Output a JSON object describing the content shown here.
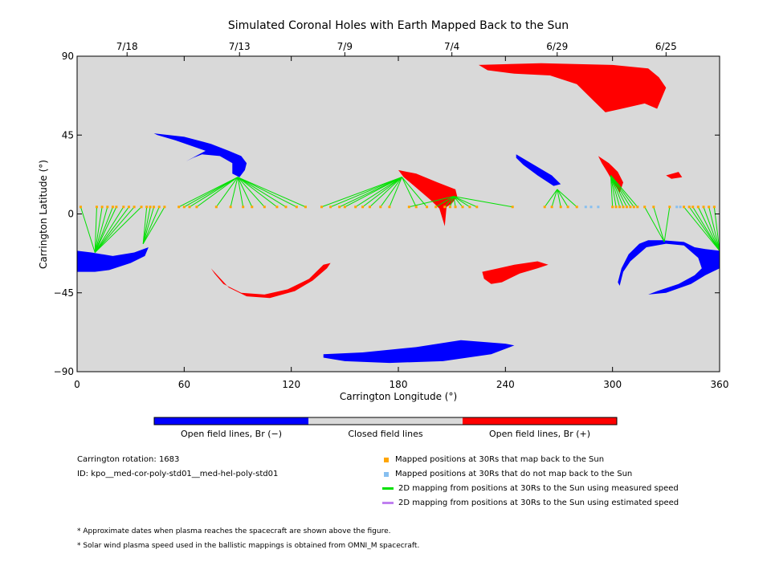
{
  "chart_data": {
    "type": "scatter",
    "title": "Simulated Coronal Holes with Earth Mapped Back to the Sun",
    "xlabel": "Carrington Longitude (°)",
    "ylabel": "Carrington Latitude (°)",
    "xlim": [
      0,
      360
    ],
    "ylim": [
      -90,
      90
    ],
    "xticks": [
      0,
      60,
      120,
      180,
      240,
      300,
      360
    ],
    "yticks": [
      -90,
      -45,
      0,
      45,
      90
    ],
    "ytick_labels": [
      "−90",
      "−45",
      "0",
      "45",
      "90"
    ],
    "top_axis_dates": [
      {
        "lon": 28,
        "label": "7/18"
      },
      {
        "lon": 91,
        "label": "7/13"
      },
      {
        "lon": 150,
        "label": "7/9"
      },
      {
        "lon": 210,
        "label": "7/4"
      },
      {
        "lon": 269,
        "label": "6/29"
      },
      {
        "lon": 330,
        "label": "6/25"
      }
    ],
    "colors": {
      "background": "#d9d9d9",
      "open_negative": "#0000ff",
      "open_positive": "#ff0000",
      "closed": "#d9d9d9",
      "mapped_back": "#ffa500",
      "not_mapped": "#87bff0",
      "measured_speed": "#00e000",
      "estimated_speed": "#c080f0"
    },
    "coronal_holes": [
      {
        "polarity": "positive",
        "outline": [
          [
            225,
            85
          ],
          [
            260,
            86
          ],
          [
            300,
            85
          ],
          [
            320,
            83
          ],
          [
            326,
            78
          ],
          [
            330,
            72
          ],
          [
            325,
            60
          ],
          [
            318,
            63
          ],
          [
            305,
            60
          ],
          [
            296,
            58
          ],
          [
            289,
            65
          ],
          [
            280,
            74
          ],
          [
            265,
            79
          ],
          [
            245,
            80
          ],
          [
            230,
            82
          ]
        ]
      },
      {
        "polarity": "negative",
        "outline": [
          [
            43,
            46
          ],
          [
            60,
            44
          ],
          [
            75,
            40
          ],
          [
            85,
            36
          ],
          [
            92,
            33
          ],
          [
            95,
            29
          ],
          [
            94,
            25
          ],
          [
            91,
            21
          ],
          [
            87,
            23
          ],
          [
            87,
            29
          ],
          [
            80,
            33
          ],
          [
            70,
            34
          ],
          [
            65,
            32
          ],
          [
            61,
            30
          ],
          [
            72,
            36
          ],
          [
            55,
            42
          ],
          [
            45,
            45
          ]
        ]
      },
      {
        "polarity": "positive",
        "outline": [
          [
            180,
            25
          ],
          [
            190,
            23
          ],
          [
            202,
            18
          ],
          [
            212,
            14
          ],
          [
            213,
            10
          ],
          [
            210,
            6
          ],
          [
            207,
            4
          ],
          [
            206,
            -7
          ],
          [
            203,
            3
          ],
          [
            198,
            8
          ],
          [
            190,
            15
          ],
          [
            183,
            21
          ]
        ]
      },
      {
        "polarity": "negative",
        "outline": [
          [
            246,
            34
          ],
          [
            256,
            28
          ],
          [
            266,
            22
          ],
          [
            271,
            17
          ],
          [
            267,
            16
          ],
          [
            258,
            22
          ],
          [
            250,
            28
          ],
          [
            246,
            32
          ]
        ]
      },
      {
        "polarity": "positive",
        "outline": [
          [
            292,
            33
          ],
          [
            298,
            29
          ],
          [
            303,
            24
          ],
          [
            306,
            18
          ],
          [
            304,
            12
          ],
          [
            301,
            17
          ],
          [
            297,
            24
          ],
          [
            294,
            29
          ]
        ]
      },
      {
        "polarity": "positive",
        "outline": [
          [
            330,
            22
          ],
          [
            337,
            24
          ],
          [
            339,
            21
          ],
          [
            333,
            20
          ]
        ]
      },
      {
        "polarity": "negative",
        "outline": [
          [
            0,
            -21
          ],
          [
            8,
            -22
          ],
          [
            20,
            -24
          ],
          [
            32,
            -22
          ],
          [
            40,
            -19
          ],
          [
            38,
            -24
          ],
          [
            30,
            -28
          ],
          [
            18,
            -32
          ],
          [
            10,
            -33
          ],
          [
            0,
            -33
          ]
        ]
      },
      {
        "polarity": "negative",
        "outline": [
          [
            315,
            -17
          ],
          [
            320,
            -15
          ],
          [
            328,
            -15
          ],
          [
            340,
            -16
          ],
          [
            346,
            -19
          ],
          [
            352,
            -20
          ],
          [
            360,
            -21
          ],
          [
            360,
            -31
          ],
          [
            352,
            -35
          ],
          [
            344,
            -40
          ],
          [
            330,
            -45
          ],
          [
            320,
            -46
          ],
          [
            325,
            -44
          ],
          [
            337,
            -40
          ],
          [
            346,
            -35
          ],
          [
            350,
            -31
          ],
          [
            348,
            -25
          ],
          [
            340,
            -18
          ],
          [
            330,
            -17
          ],
          [
            319,
            -19
          ],
          [
            310,
            -27
          ],
          [
            306,
            -33
          ],
          [
            305,
            -37
          ],
          [
            304,
            -41
          ],
          [
            303,
            -39
          ],
          [
            305,
            -31
          ],
          [
            309,
            -23
          ]
        ]
      },
      {
        "polarity": "positive",
        "outline": [
          [
            75,
            -31
          ],
          [
            85,
            -42
          ],
          [
            95,
            -47
          ],
          [
            108,
            -48
          ],
          [
            122,
            -44
          ],
          [
            132,
            -38
          ],
          [
            140,
            -31
          ],
          [
            142,
            -28
          ],
          [
            138,
            -29
          ],
          [
            130,
            -37
          ],
          [
            118,
            -43
          ],
          [
            105,
            -46
          ],
          [
            92,
            -45
          ],
          [
            82,
            -40
          ],
          [
            77,
            -34
          ]
        ]
      },
      {
        "polarity": "positive",
        "outline": [
          [
            227,
            -33
          ],
          [
            236,
            -31
          ],
          [
            245,
            -29
          ],
          [
            258,
            -27
          ],
          [
            264,
            -29
          ],
          [
            258,
            -31
          ],
          [
            248,
            -34
          ],
          [
            238,
            -39
          ],
          [
            232,
            -40
          ],
          [
            228,
            -37
          ]
        ]
      },
      {
        "polarity": "negative",
        "outline": [
          [
            138,
            -80
          ],
          [
            160,
            -79
          ],
          [
            190,
            -76
          ],
          [
            215,
            -72
          ],
          [
            240,
            -74
          ],
          [
            245,
            -75
          ],
          [
            232,
            -80
          ],
          [
            205,
            -84
          ],
          [
            175,
            -85
          ],
          [
            150,
            -84
          ],
          [
            138,
            -82
          ]
        ]
      }
    ],
    "footpoints": [
      {
        "lon": 90,
        "lat": 21
      },
      {
        "lon": 182,
        "lat": 21
      },
      {
        "lon": 211,
        "lat": 10
      },
      {
        "lon": 269,
        "lat": 14
      },
      {
        "lon": 299,
        "lat": 22
      },
      {
        "lon": 329,
        "lat": -16
      },
      {
        "lon": 10,
        "lat": -22
      },
      {
        "lon": 37,
        "lat": -17
      },
      {
        "lon": 360,
        "lat": -21
      }
    ],
    "mapped_positions": [
      {
        "lon": 2,
        "lat": 4,
        "footpoint": 6,
        "maps_back": true
      },
      {
        "lon": 11,
        "lat": 4,
        "footpoint": 6,
        "maps_back": true
      },
      {
        "lon": 14,
        "lat": 4,
        "footpoint": 6,
        "maps_back": true
      },
      {
        "lon": 17,
        "lat": 4,
        "footpoint": 6,
        "maps_back": true
      },
      {
        "lon": 20,
        "lat": 4,
        "footpoint": 6,
        "maps_back": true
      },
      {
        "lon": 22,
        "lat": 4,
        "footpoint": 6,
        "maps_back": true
      },
      {
        "lon": 26,
        "lat": 4,
        "footpoint": 6,
        "maps_back": true
      },
      {
        "lon": 29,
        "lat": 4,
        "footpoint": 6,
        "maps_back": true
      },
      {
        "lon": 32,
        "lat": 4,
        "footpoint": 6,
        "maps_back": true
      },
      {
        "lon": 36,
        "lat": 4,
        "footpoint": 6,
        "maps_back": true
      },
      {
        "lon": 39,
        "lat": 4,
        "footpoint": 7,
        "maps_back": true
      },
      {
        "lon": 41,
        "lat": 4,
        "footpoint": 7,
        "maps_back": true
      },
      {
        "lon": 43,
        "lat": 4,
        "footpoint": 7,
        "maps_back": true
      },
      {
        "lon": 46,
        "lat": 4,
        "footpoint": 7,
        "maps_back": true
      },
      {
        "lon": 49,
        "lat": 4,
        "footpoint": 7,
        "maps_back": true
      },
      {
        "lon": 57,
        "lat": 4,
        "footpoint": 0,
        "maps_back": true
      },
      {
        "lon": 60,
        "lat": 4,
        "footpoint": 0,
        "maps_back": true
      },
      {
        "lon": 63,
        "lat": 4,
        "footpoint": 0,
        "maps_back": true
      },
      {
        "lon": 67,
        "lat": 4,
        "footpoint": 0,
        "maps_back": true
      },
      {
        "lon": 78,
        "lat": 4,
        "footpoint": 0,
        "maps_back": true
      },
      {
        "lon": 86,
        "lat": 4,
        "footpoint": 0,
        "maps_back": true
      },
      {
        "lon": 93,
        "lat": 4,
        "footpoint": 0,
        "maps_back": true
      },
      {
        "lon": 98,
        "lat": 4,
        "footpoint": 0,
        "maps_back": true
      },
      {
        "lon": 105,
        "lat": 4,
        "footpoint": 0,
        "maps_back": true
      },
      {
        "lon": 112,
        "lat": 4,
        "footpoint": 0,
        "maps_back": true
      },
      {
        "lon": 117,
        "lat": 4,
        "footpoint": 0,
        "maps_back": true
      },
      {
        "lon": 123,
        "lat": 4,
        "footpoint": 0,
        "maps_back": true
      },
      {
        "lon": 128,
        "lat": 4,
        "footpoint": 0,
        "maps_back": true
      },
      {
        "lon": 137,
        "lat": 4,
        "footpoint": 1,
        "maps_back": true
      },
      {
        "lon": 142,
        "lat": 4,
        "footpoint": 1,
        "maps_back": true
      },
      {
        "lon": 147,
        "lat": 4,
        "footpoint": 1,
        "maps_back": true
      },
      {
        "lon": 150,
        "lat": 4,
        "footpoint": 1,
        "maps_back": true
      },
      {
        "lon": 156,
        "lat": 4,
        "footpoint": 1,
        "maps_back": true
      },
      {
        "lon": 160,
        "lat": 4,
        "footpoint": 1,
        "maps_back": true
      },
      {
        "lon": 164,
        "lat": 4,
        "footpoint": 1,
        "maps_back": true
      },
      {
        "lon": 170,
        "lat": 4,
        "footpoint": 1,
        "maps_back": true
      },
      {
        "lon": 175,
        "lat": 4,
        "footpoint": 1,
        "maps_back": true
      },
      {
        "lon": 186,
        "lat": 4,
        "footpoint": 2,
        "maps_back": true
      },
      {
        "lon": 190,
        "lat": 4,
        "footpoint": 1,
        "maps_back": true
      },
      {
        "lon": 196,
        "lat": 4,
        "footpoint": 1,
        "maps_back": true
      },
      {
        "lon": 201,
        "lat": 4,
        "footpoint": 2,
        "maps_back": true
      },
      {
        "lon": 206,
        "lat": 4,
        "footpoint": 2,
        "maps_back": true
      },
      {
        "lon": 209,
        "lat": 4,
        "footpoint": 2,
        "maps_back": true
      },
      {
        "lon": 212,
        "lat": 4,
        "footpoint": 2,
        "maps_back": true
      },
      {
        "lon": 216,
        "lat": 4,
        "footpoint": 2,
        "maps_back": true
      },
      {
        "lon": 220,
        "lat": 4,
        "footpoint": 2,
        "maps_back": true
      },
      {
        "lon": 224,
        "lat": 4,
        "footpoint": 2,
        "maps_back": true
      },
      {
        "lon": 244,
        "lat": 4,
        "footpoint": 2,
        "maps_back": true
      },
      {
        "lon": 262,
        "lat": 4,
        "footpoint": 3,
        "maps_back": true
      },
      {
        "lon": 266,
        "lat": 4,
        "footpoint": 3,
        "maps_back": true
      },
      {
        "lon": 271,
        "lat": 4,
        "footpoint": 3,
        "maps_back": true
      },
      {
        "lon": 275,
        "lat": 4,
        "footpoint": 3,
        "maps_back": true
      },
      {
        "lon": 280,
        "lat": 4,
        "footpoint": 3,
        "maps_back": true
      },
      {
        "lon": 285,
        "lat": 4,
        "maps_back": false
      },
      {
        "lon": 288,
        "lat": 4,
        "maps_back": false
      },
      {
        "lon": 292,
        "lat": 4,
        "maps_back": false
      },
      {
        "lon": 300,
        "lat": 4,
        "footpoint": 4,
        "maps_back": true
      },
      {
        "lon": 302,
        "lat": 4,
        "footpoint": 4,
        "maps_back": true
      },
      {
        "lon": 304,
        "lat": 4,
        "footpoint": 4,
        "maps_back": true
      },
      {
        "lon": 306,
        "lat": 4,
        "footpoint": 4,
        "maps_back": true
      },
      {
        "lon": 308,
        "lat": 4,
        "footpoint": 4,
        "maps_back": true
      },
      {
        "lon": 310,
        "lat": 4,
        "footpoint": 4,
        "maps_back": true
      },
      {
        "lon": 312,
        "lat": 4,
        "footpoint": 4,
        "maps_back": true
      },
      {
        "lon": 314,
        "lat": 4,
        "footpoint": 4,
        "maps_back": true
      },
      {
        "lon": 318,
        "lat": 4,
        "footpoint": 5,
        "maps_back": true
      },
      {
        "lon": 323,
        "lat": 4,
        "footpoint": 5,
        "maps_back": true
      },
      {
        "lon": 332,
        "lat": 4,
        "footpoint": 5,
        "maps_back": true
      },
      {
        "lon": 336,
        "lat": 4,
        "maps_back": false
      },
      {
        "lon": 338,
        "lat": 4,
        "maps_back": false
      },
      {
        "lon": 340,
        "lat": 4,
        "footpoint": 8,
        "maps_back": true
      },
      {
        "lon": 343,
        "lat": 4,
        "footpoint": 8,
        "maps_back": true
      },
      {
        "lon": 345,
        "lat": 4,
        "footpoint": 8,
        "maps_back": true
      },
      {
        "lon": 348,
        "lat": 4,
        "footpoint": 8,
        "maps_back": true
      },
      {
        "lon": 351,
        "lat": 4,
        "footpoint": 8,
        "maps_back": true
      },
      {
        "lon": 354,
        "lat": 4,
        "footpoint": 8,
        "maps_back": true
      },
      {
        "lon": 357,
        "lat": 4,
        "footpoint": 8,
        "maps_back": true
      }
    ]
  },
  "colorbar": {
    "labels": [
      "Open field lines, Br (−)",
      "Closed field lines",
      "Open field lines, Br (+)"
    ]
  },
  "info": {
    "rotation": "Carrington rotation: 1683",
    "id": "ID: kpo__med-cor-poly-std01__med-hel-poly-std01"
  },
  "legend": [
    {
      "kind": "square",
      "color": "#ffa500",
      "label": "Mapped positions at 30Rs that map back to the Sun"
    },
    {
      "kind": "square",
      "color": "#87bff0",
      "label": "Mapped positions at 30Rs that do not map back to the Sun"
    },
    {
      "kind": "line",
      "color": "#00e000",
      "label": "2D mapping from positions at 30Rs to the Sun using measured speed"
    },
    {
      "kind": "line",
      "color": "#c080f0",
      "label": "2D mapping from positions at 30Rs to the Sun using estimated speed"
    }
  ],
  "notes": [
    "* Approximate dates when plasma reaches the spacecraft are shown above the figure.",
    "* Solar wind plasma speed used in the ballistic mappings is obtained from OMNI_M spacecraft."
  ]
}
